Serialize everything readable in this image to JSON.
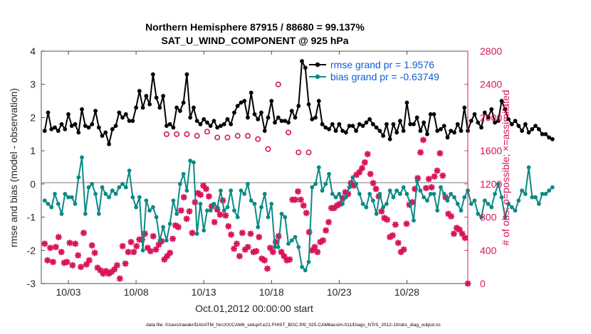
{
  "chart_data": {
    "type": "line",
    "title_line1": "Northern Hemisphere 87915 / 88680 = 99.137%",
    "title_line2": "SAT_U_WIND_COMPONENT @ 925 hPa",
    "xlabel": "Oct.01,2012 00:00:00 start",
    "ylabel_left": "rmse and bias (model - observation)",
    "ylabel_right": "# of obs: o=possible; ×=assimilated",
    "footer": "data file: /Users/raeder/DAI/ATM_forcXX/CAM6_setup/f.e21.FHIST_BGC.f09_025.CAM6assim.011/Diags_NTrS_2012-10/obs_diag_output.nc",
    "xlim": [
      1,
      32.5
    ],
    "ylim_left": [
      -3,
      4
    ],
    "ylim_right": [
      0,
      2800
    ],
    "x_ticks": [
      3,
      8,
      13,
      18,
      23,
      28
    ],
    "x_tick_labels": [
      "10/03",
      "10/08",
      "10/13",
      "10/18",
      "10/23",
      "10/28"
    ],
    "y_left_ticks": [
      -3,
      -2,
      -1,
      0,
      1,
      2,
      3,
      4
    ],
    "y_left_tick_labels": [
      "-3",
      "-2",
      "-1",
      "0",
      "1",
      "2",
      "3",
      "4"
    ],
    "y_right_ticks": [
      0,
      400,
      800,
      1200,
      1600,
      2000,
      2400,
      2800
    ],
    "y_right_tick_labels": [
      "0",
      "400",
      "800",
      "1200",
      "1600",
      "2000",
      "2400",
      "2800"
    ],
    "x_start": 1.25,
    "x_step": 0.25,
    "legend": [
      {
        "name": "rmse grand pr =  1.9576",
        "color": "#000000"
      },
      {
        "name": "bias grand pr =  -0.63749",
        "color": "#0a8a85"
      }
    ],
    "series": [
      {
        "name": "rmse",
        "color": "#000000",
        "axis": "left",
        "values": [
          1.6,
          2.15,
          1.65,
          1.7,
          1.6,
          1.8,
          1.65,
          2.1,
          1.75,
          1.8,
          1.55,
          2.25,
          1.75,
          1.7,
          1.8,
          2.2,
          1.7,
          1.45,
          1.55,
          1.2,
          1.65,
          1.75,
          2.15,
          2.0,
          2.1,
          1.9,
          1.9,
          2.3,
          2.8,
          2.3,
          2.65,
          2.4,
          3.3,
          2.6,
          2.3,
          2.65,
          1.75,
          1.8,
          1.7,
          2.3,
          2.2,
          2.45,
          3.3,
          2.0,
          2.3,
          1.9,
          1.8,
          1.95,
          1.85,
          1.75,
          1.9,
          1.7,
          1.75,
          1.8,
          1.95,
          1.8,
          2.15,
          2.35,
          2.45,
          2.5,
          2.0,
          2.75,
          2.1,
          1.95,
          2.15,
          1.6,
          2.0,
          2.5,
          1.85,
          2.0,
          1.9,
          1.9,
          1.85,
          2.2,
          2.0,
          2.35,
          3.7,
          3.5,
          2.4,
          1.95,
          2.0,
          2.5,
          1.8,
          1.7,
          1.65,
          1.8,
          1.6,
          1.8,
          1.6,
          1.55,
          1.75,
          1.75,
          1.6,
          1.8,
          1.75,
          1.85,
          1.95,
          1.8,
          1.7,
          1.6,
          1.45,
          1.8,
          1.35,
          1.8,
          1.55,
          1.9,
          1.6,
          2.45,
          1.8,
          1.8,
          2.0,
          1.6,
          1.85,
          1.5,
          2.1,
          2.1,
          1.6,
          1.65,
          1.75,
          1.4,
          1.6,
          1.55,
          1.8,
          1.6,
          2.3,
          1.6,
          1.9,
          2.1,
          1.85,
          1.7,
          2.15,
          2.0,
          2.25,
          1.85,
          1.9,
          2.5,
          2.25,
          1.95,
          1.8,
          1.9,
          1.75,
          1.6,
          1.8,
          1.55,
          1.65,
          1.75,
          1.65,
          1.5,
          1.5,
          1.4,
          1.35
        ]
      },
      {
        "name": "bias",
        "color": "#0a8a85",
        "axis": "left",
        "values": [
          -0.5,
          -0.6,
          -0.7,
          -0.3,
          -0.6,
          -0.9,
          -0.3,
          -0.4,
          -0.4,
          -0.6,
          0.2,
          0.8,
          -0.9,
          -0.1,
          0.0,
          -0.3,
          -0.9,
          -0.1,
          -0.3,
          -0.4,
          -0.2,
          -0.3,
          -0.1,
          0.0,
          -0.1,
          0.4,
          -0.4,
          -0.7,
          -0.4,
          -2.0,
          -0.5,
          -0.8,
          -0.7,
          -1.0,
          -1.7,
          -1.3,
          -1.7,
          -1.2,
          -0.5,
          -0.9,
          0.0,
          0.3,
          -0.2,
          0.7,
          0.65,
          -1.5,
          -0.6,
          -1.4,
          -0.8,
          -0.8,
          -0.6,
          -0.7,
          -0.2,
          -0.8,
          -0.7,
          -0.2,
          -0.8,
          -1.0,
          -0.2,
          -0.3,
          0.0,
          -0.5,
          -0.6,
          -1.3,
          -0.7,
          -0.3,
          -1.0,
          -0.6,
          -1.9,
          -1.9,
          -0.9,
          -1.0,
          -1.8,
          -1.7,
          -1.6,
          -1.9,
          -2.5,
          -2.6,
          -2.35,
          -0.1,
          0.0,
          0.5,
          -0.2,
          0.0,
          0.3,
          -0.3,
          -0.4,
          -0.3,
          -0.6,
          -0.4,
          -0.1,
          0.2,
          0.0,
          -0.3,
          -0.6,
          -0.7,
          -0.3,
          -0.5,
          -0.9,
          -0.3,
          -0.7,
          -0.6,
          -0.2,
          -0.4,
          -0.2,
          -0.3,
          -0.1,
          -0.3,
          -0.6,
          -1.1,
          0.1,
          -0.2,
          -0.4,
          -0.5,
          -0.3,
          -0.3,
          -0.8,
          -0.1,
          -0.3,
          -0.5,
          -0.3,
          -0.4,
          -0.6,
          -0.8,
          -0.4,
          -0.2,
          -0.6,
          -0.5,
          -0.9,
          -1.0,
          -0.5,
          -0.6,
          -0.7,
          -0.3,
          0.0,
          -0.4,
          -1.0,
          -0.6,
          -0.7,
          -0.8,
          -0.5,
          -0.2,
          -0.3,
          0.5,
          -0.4,
          -0.4,
          -0.6,
          -0.3,
          -0.3,
          -0.2,
          -0.1
        ]
      },
      {
        "name": "obs possible",
        "color": "#d8145a",
        "axis": "right",
        "marker": "o",
        "values": [
          1800,
          1800,
          1800,
          1780,
          1830,
          1760,
          1760,
          1780,
          1780,
          1740,
          1620,
          2400,
          1820,
          1580,
          1580
        ]
      },
      {
        "name": "obs assimilated",
        "color": "#d8145a",
        "axis": "right",
        "marker": "x",
        "values": [
          480,
          280,
          430,
          260,
          440,
          560,
          380,
          250,
          260,
          490,
          220,
          480,
          340,
          200,
          610,
          230,
          280,
          460,
          370,
          190,
          160,
          120,
          150,
          120,
          140,
          170,
          220,
          60,
          450,
          240,
          380,
          500,
          380,
          450,
          530,
          530,
          600,
          430,
          390,
          570,
          410,
          470,
          510,
          290,
          330,
          370,
          540,
          700,
          680,
          880,
          1040,
          780,
          870,
          610,
          980,
          1090,
          1070,
          1180,
          1140,
          1050,
          930,
          740,
          890,
          830,
          1000,
          820,
          690,
          590,
          420,
          480,
          330,
          610,
          410,
          440,
          600,
          380,
          390,
          560,
          300,
          280,
          180,
          430,
          380,
          500,
          570,
          380,
          330,
          280,
          290,
          1010,
          1010,
          1110,
          1010,
          940,
          850,
          620,
          400,
          440,
          380,
          500,
          520,
          640,
          740,
          910,
          910,
          940,
          960,
          1030,
          1100,
          1080,
          1210,
          1180,
          1310,
          1340,
          1390,
          1460,
          1560,
          1320,
          1210,
          1140,
          1050,
          870,
          790,
          770,
          560,
          580,
          710,
          490,
          380,
          410,
          720,
          950,
          980,
          1140,
          1270,
          1580,
          1730,
          1150,
          1260,
          1160,
          1290,
          1360,
          1570,
          1300,
          1040,
          840,
          810,
          600,
          670,
          650,
          600,
          550,
          0
        ]
      }
    ]
  }
}
